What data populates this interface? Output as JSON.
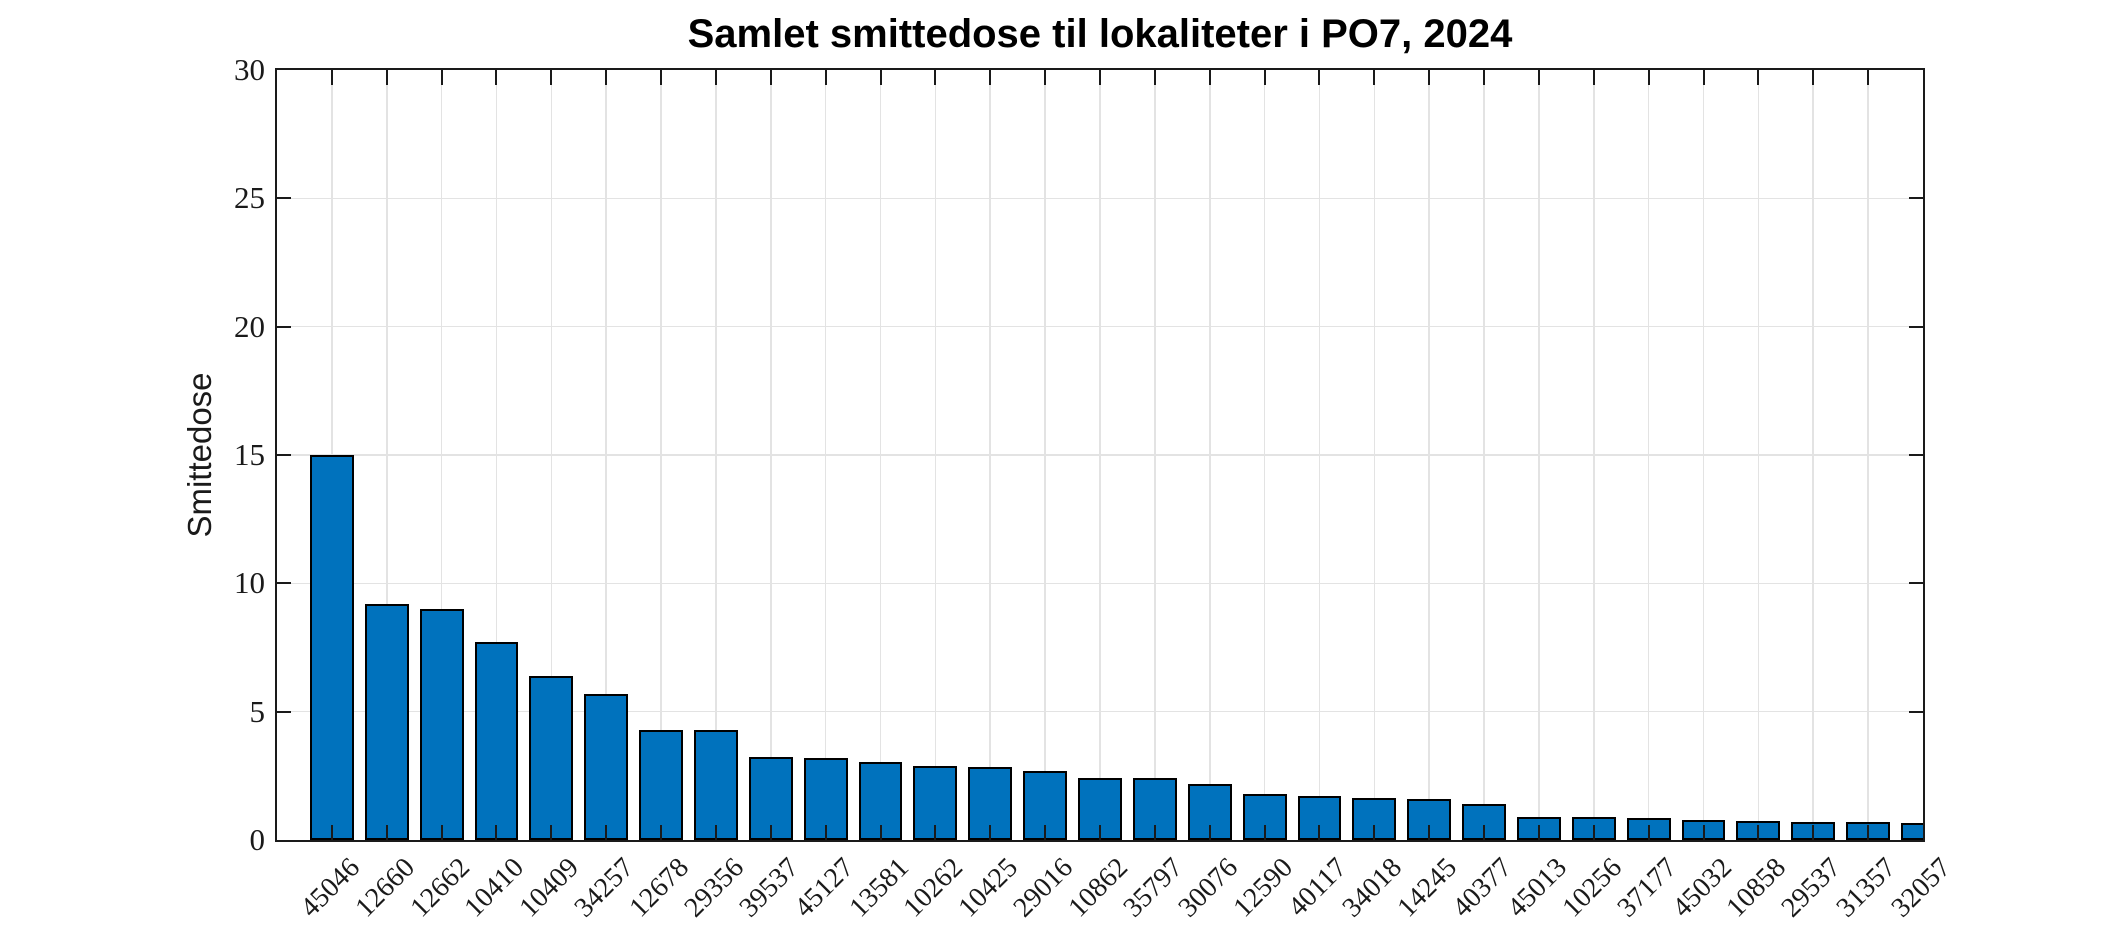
{
  "figure": {
    "background": "#FFFFFF"
  },
  "chart_data": {
    "type": "bar",
    "title": "Samlet smittedose til lokaliteter i PO7, 2024",
    "xlabel": "",
    "ylabel": "Smittedose",
    "categories": [
      "45046",
      "12660",
      "12662",
      "10410",
      "10409",
      "34257",
      "12678",
      "29356",
      "39537",
      "45127",
      "13581",
      "10262",
      "10425",
      "29016",
      "10862",
      "35797",
      "30076",
      "12590",
      "40117",
      "34018",
      "14245",
      "40377",
      "45013",
      "10256",
      "37177",
      "45032",
      "10858",
      "29537",
      "31357",
      "32057"
    ],
    "values": [
      15.0,
      9.2,
      9.0,
      7.7,
      6.4,
      5.7,
      4.3,
      4.3,
      3.25,
      3.2,
      3.05,
      2.9,
      2.85,
      2.7,
      2.4,
      2.4,
      2.2,
      1.8,
      1.7,
      1.65,
      1.6,
      1.4,
      0.9,
      0.88,
      0.85,
      0.78,
      0.73,
      0.72,
      0.7,
      0.65
    ],
    "ylim": [
      0,
      30
    ],
    "yticks": [
      0,
      5,
      10,
      15,
      20,
      25,
      30
    ],
    "xlim_category_units": [
      0,
      30
    ],
    "grid": true,
    "legend": "none",
    "x_tick_rotation_deg": 45,
    "bar_width_fraction": 0.8,
    "last_bar_clipped_at_right_axis": true,
    "colors": {
      "bar_fill": "#0072BD",
      "bar_edge": "#000000",
      "axis": "#1A1A1A",
      "grid": "#E3E3E3",
      "text": "#1A1A1A",
      "title_text": "#000000"
    }
  }
}
